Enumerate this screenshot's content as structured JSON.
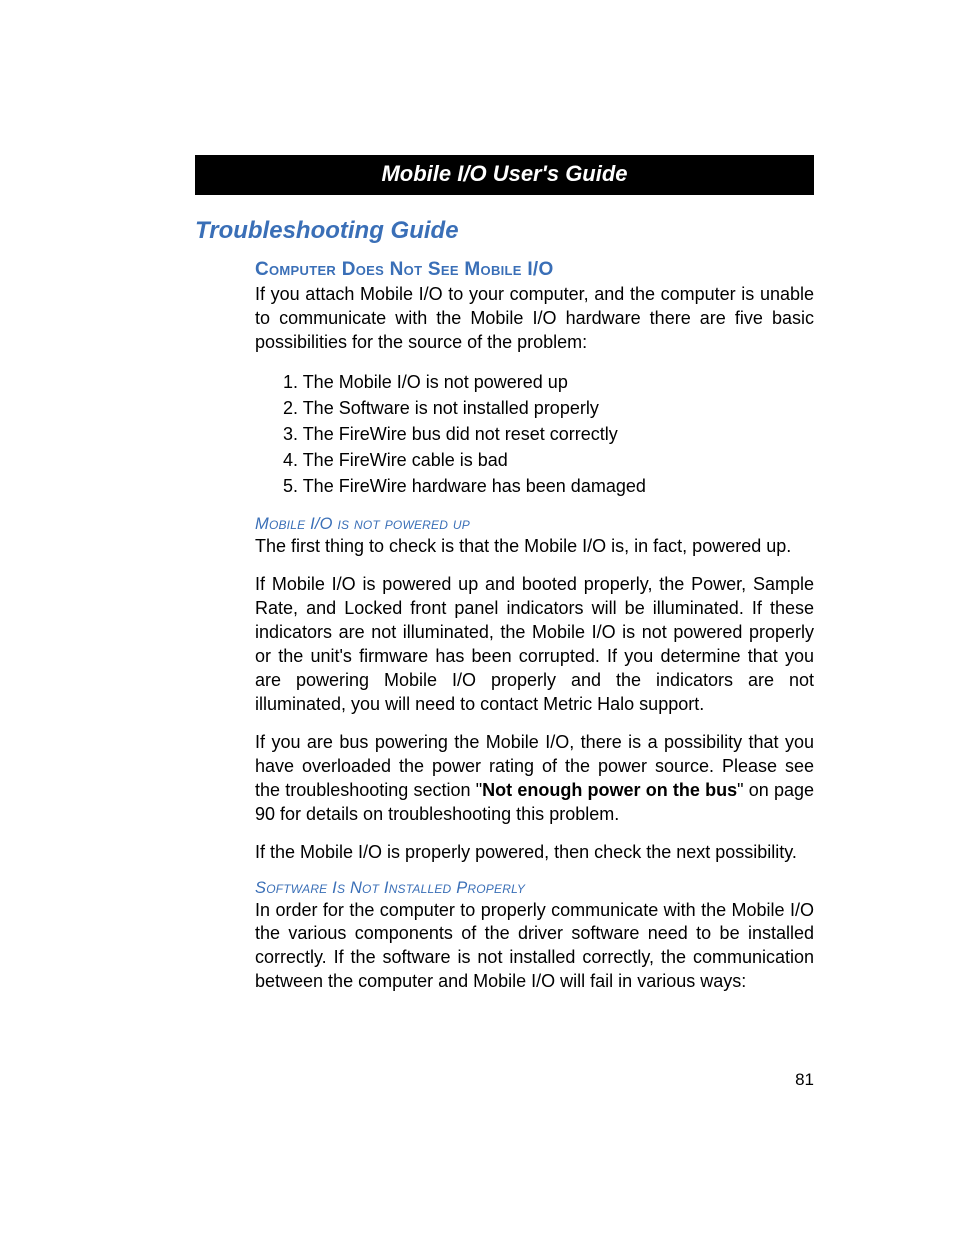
{
  "colors": {
    "heading_blue": "#3a6fb7",
    "header_bg": "#000000",
    "header_fg": "#ffffff",
    "body_text": "#000000",
    "page_bg": "#ffffff"
  },
  "typography": {
    "body_font": "Optima / Candara / Segoe UI",
    "body_size_pt": 13,
    "header_size_pt": 16,
    "section_title_size_pt": 18,
    "sub_heading_size_pt": 14,
    "minor_heading_size_pt": 12
  },
  "header": {
    "title": "Mobile I/O User's Guide"
  },
  "section": {
    "title": "Troubleshooting Guide"
  },
  "sub1": {
    "heading": "Computer Does Not See Mobile I/O",
    "intro": "If you attach Mobile I/O to your computer, and the computer is unable to communicate with the Mobile I/O hardware there are five basic possibilities for the source of the problem:",
    "list": {
      "i1": "1. The Mobile I/O is not powered up",
      "i2": "2. The Software is not installed properly",
      "i3": "3. The FireWire bus did not reset correctly",
      "i4": "4. The FireWire cable is bad",
      "i5": "5. The FireWire hardware has been damaged"
    }
  },
  "minor1": {
    "heading": "Mobile I/O is not powered up",
    "p1": "The first thing to check is that the Mobile I/O is, in fact, powered up.",
    "p2": "If Mobile I/O is powered up and booted properly, the Power, Sample Rate, and Locked front panel indicators will be illuminated. If these indicators are not illuminated, the Mobile I/O is not powered properly or the unit's firmware has been corrupted. If you determine that you are powering Mobile I/O properly and the indicators are not illuminated, you will need to contact Metric Halo support.",
    "p3_a": "If you are bus powering the Mobile I/O, there is a possibility that you have overloaded the power rating of the power source. Please see the troubleshooting section \"",
    "p3_bold": "Not enough power on the bus",
    "p3_b": "\" on page 90 for details on troubleshooting this problem.",
    "p4": "If the Mobile I/O is properly powered, then check the next possibility."
  },
  "minor2": {
    "heading": "Software Is Not Installed Properly",
    "p1": "In order for the computer to properly communicate with the Mobile I/O the various components of the driver software need to be installed correctly. If the software is not installed correctly, the communication between the computer and Mobile I/O will fail in various ways:"
  },
  "page_number": "81"
}
